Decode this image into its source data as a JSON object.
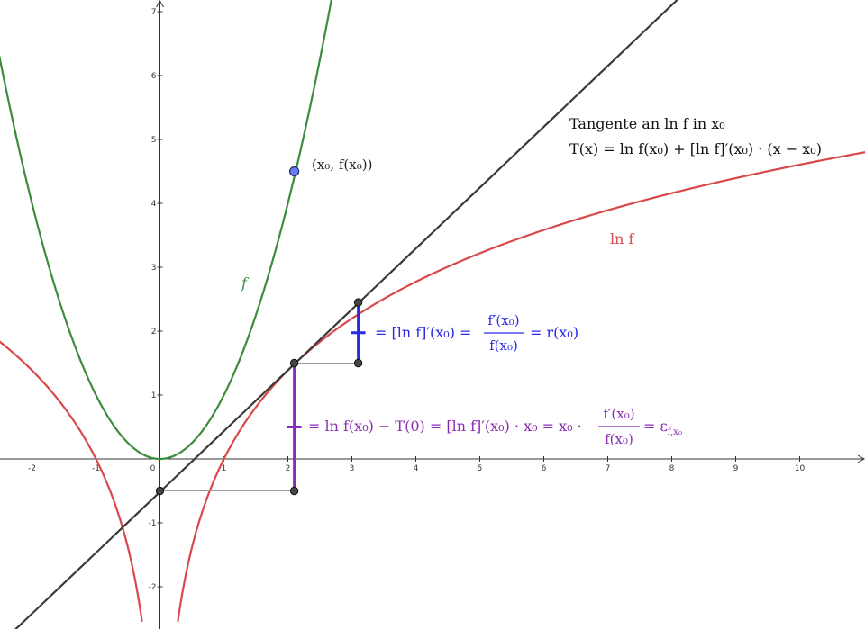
{
  "chart_data": {
    "type": "line",
    "xlim": [
      -2.5,
      11
    ],
    "ylim": [
      -2.2,
      7.2
    ],
    "x_ticks": [
      "-2",
      "-1",
      "0",
      "1",
      "2",
      "3",
      "4",
      "5",
      "6",
      "7",
      "8",
      "9",
      "10"
    ],
    "y_ticks": [
      "-2",
      "-1",
      "1",
      "2",
      "3",
      "4",
      "5",
      "6",
      "7"
    ],
    "grid": false,
    "x0": 2.1,
    "points": [
      {
        "x": 2.1,
        "y": 4.5
      },
      {
        "x": 2.1,
        "y": 1.5
      },
      {
        "x": 0,
        "y": -0.5
      },
      {
        "x": 2.1,
        "y": -0.5
      },
      {
        "x": 3.1,
        "y": 2.45
      },
      {
        "x": 3.1,
        "y": 1.5
      }
    ],
    "colors": {
      "f": "#3d8b3d",
      "lnf": "#d9484a",
      "tangent": "#3a3a3a",
      "blue": "#2a2ae6",
      "purple": "#8a2db5",
      "point_fill": "#6a7df0",
      "helper": "#9a9a9a"
    }
  },
  "labels": {
    "point_label": "(x₀, f(x₀))",
    "f_label": "f",
    "lnf_label": "ln f",
    "tangent_line1": "Tangente an ln f in x₀",
    "tangent_line2": "T(x) = ln f(x₀) + [ln f]′(x₀) · (x − x₀)",
    "blue_pre": "= [ln f]′(x₀) =",
    "blue_num": "f′(x₀)",
    "blue_den": "f(x₀)",
    "blue_post": "= r(x₀)",
    "purple_pre": "= ln f(x₀) − T(0) = [ln f]′(x₀) · x₀ = x₀ ·",
    "purple_num": "f′(x₀)",
    "purple_den": "f(x₀)",
    "purple_post": "= ε",
    "purple_sub": "f,x₀"
  }
}
